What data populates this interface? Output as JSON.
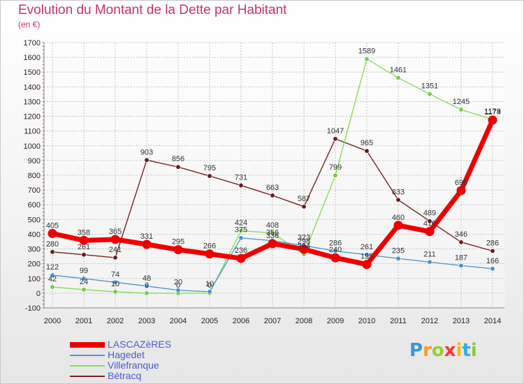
{
  "header": {
    "title": "Evolution du Montant de la Dette par Habitant",
    "subtitle": "(en €)"
  },
  "chart_data": {
    "type": "line",
    "title": "Evolution du Montant de la Dette par Habitant",
    "subtitle": "(en €)",
    "xlabel": "",
    "ylabel": "",
    "x": [
      "2000",
      "2001",
      "2002",
      "2003",
      "2004",
      "2005",
      "2006",
      "2007",
      "2008",
      "2009",
      "2010",
      "2011",
      "2012",
      "2013",
      "2014"
    ],
    "ylim": [
      -100,
      1700
    ],
    "yticks": [
      -100,
      0,
      100,
      200,
      300,
      400,
      500,
      600,
      700,
      800,
      900,
      1000,
      1100,
      1200,
      1300,
      1400,
      1500,
      1600,
      1700
    ],
    "grid": true,
    "legend_position": "bottom-left",
    "series": [
      {
        "name": "LASCAZèRES",
        "color": "#ee0000",
        "values": [
          405,
          358,
          365,
          331,
          295,
          266,
          236,
          336,
          298,
          240,
          195,
          460,
          418,
          696,
          1174
        ]
      },
      {
        "name": "Hagedet",
        "color": "#5599cc",
        "values": [
          122,
          99,
          74,
          48,
          20,
          10,
          375,
          356,
          323,
          286,
          261,
          235,
          211,
          187,
          166
        ]
      },
      {
        "name": "Villefranque",
        "color": "#88dd55",
        "values": [
          42,
          24,
          10,
          0,
          0,
          0,
          424,
          408,
          264,
          799,
          1589,
          1461,
          1351,
          1245,
          1179
        ]
      },
      {
        "name": "Bétracq",
        "color": "#772222",
        "values": [
          280,
          261,
          241,
          903,
          856,
          795,
          731,
          663,
          587,
          1047,
          965,
          633,
          489,
          346,
          286
        ]
      }
    ]
  },
  "logo": {
    "letters": [
      "P",
      "r",
      "o",
      "x",
      "i",
      "t",
      "i"
    ],
    "colors": [
      "#3399dd",
      "#ff9922",
      "#99cc33",
      "#ff3333",
      "#ffbb00",
      "#33aaee",
      "#88cc33"
    ]
  }
}
